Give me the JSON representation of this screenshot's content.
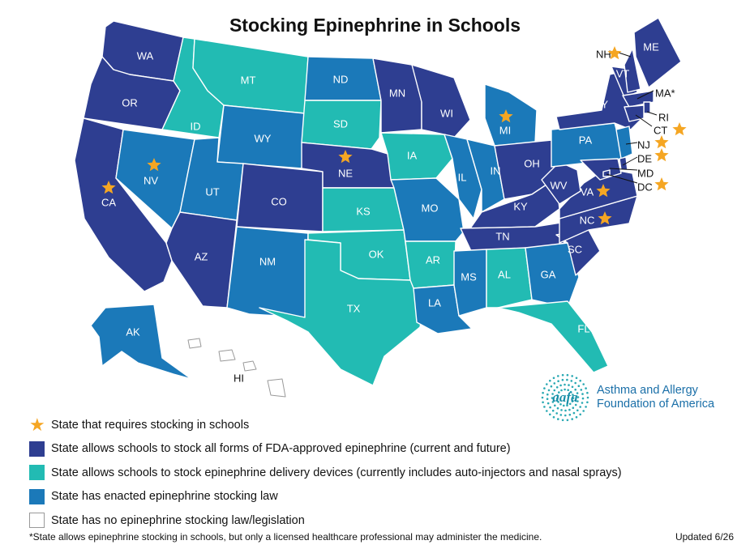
{
  "title": "Stocking Epinephrine in Schools",
  "colors": {
    "dark": "#2e3e91",
    "teal": "#22bbb3",
    "blue": "#1b79b9",
    "none": "#ffffff",
    "star": "#f5a623"
  },
  "categories": {
    "dark": "State allows schools to stock all forms of FDA-approved epinephrine (current and future)",
    "teal": "State allows schools to stock epinephrine delivery devices (currently includes auto-injectors and nasal sprays)",
    "blue": "State has enacted epinephrine stocking law",
    "none": "State has no epinephrine stocking law/legislation"
  },
  "legend": {
    "star": "State that requires stocking in schools",
    "dark": "State allows schools to stock all forms of FDA-approved epinephrine (current and future)",
    "teal": "State allows schools to stock epinephrine delivery devices (currently includes auto-injectors and nasal sprays)",
    "blue": "State has enacted epinephrine stocking law",
    "none": "State has no epinephrine stocking law/legislation"
  },
  "states": {
    "WA": {
      "category": "dark",
      "requires": false
    },
    "OR": {
      "category": "dark",
      "requires": false
    },
    "CA": {
      "category": "dark",
      "requires": true
    },
    "ID": {
      "category": "teal",
      "requires": false
    },
    "MT": {
      "category": "teal",
      "requires": false
    },
    "WY": {
      "category": "blue",
      "requires": false
    },
    "NV": {
      "category": "blue",
      "requires": true
    },
    "UT": {
      "category": "blue",
      "requires": false
    },
    "AZ": {
      "category": "dark",
      "requires": false
    },
    "CO": {
      "category": "dark",
      "requires": false
    },
    "NM": {
      "category": "blue",
      "requires": false
    },
    "ND": {
      "category": "blue",
      "requires": false
    },
    "SD": {
      "category": "teal",
      "requires": false
    },
    "NE": {
      "category": "dark",
      "requires": true
    },
    "KS": {
      "category": "teal",
      "requires": false
    },
    "OK": {
      "category": "teal",
      "requires": false
    },
    "TX": {
      "category": "teal",
      "requires": false
    },
    "MN": {
      "category": "dark",
      "requires": false
    },
    "IA": {
      "category": "teal",
      "requires": false
    },
    "MO": {
      "category": "blue",
      "requires": false
    },
    "AR": {
      "category": "teal",
      "requires": false
    },
    "LA": {
      "category": "blue",
      "requires": false
    },
    "WI": {
      "category": "dark",
      "requires": false
    },
    "IL": {
      "category": "blue",
      "requires": false
    },
    "MI": {
      "category": "blue",
      "requires": true
    },
    "IN": {
      "category": "blue",
      "requires": false
    },
    "OH": {
      "category": "dark",
      "requires": false
    },
    "KY": {
      "category": "dark",
      "requires": false
    },
    "TN": {
      "category": "dark",
      "requires": false
    },
    "MS": {
      "category": "blue",
      "requires": false
    },
    "AL": {
      "category": "teal",
      "requires": false
    },
    "GA": {
      "category": "blue",
      "requires": false
    },
    "FL": {
      "category": "teal",
      "requires": false
    },
    "SC": {
      "category": "dark",
      "requires": false
    },
    "NC": {
      "category": "dark",
      "requires": true
    },
    "VA": {
      "category": "dark",
      "requires": true
    },
    "WV": {
      "category": "dark",
      "requires": false
    },
    "PA": {
      "category": "blue",
      "requires": false
    },
    "NY": {
      "category": "dark",
      "requires": false
    },
    "VT": {
      "category": "dark",
      "requires": false
    },
    "NH": {
      "category": "dark",
      "requires": true
    },
    "ME": {
      "category": "dark",
      "requires": false
    },
    "MA": {
      "category": "dark",
      "requires": false
    },
    "RI": {
      "category": "dark",
      "requires": false
    },
    "CT": {
      "category": "dark",
      "requires": true
    },
    "NJ": {
      "category": "blue",
      "requires": true
    },
    "DE": {
      "category": "dark",
      "requires": true
    },
    "MD": {
      "category": "dark",
      "requires": false
    },
    "DC": {
      "category": "dark",
      "requires": true
    },
    "AK": {
      "category": "blue",
      "requires": false
    },
    "HI": {
      "category": "none",
      "requires": false
    }
  },
  "callout_labels": {
    "NH": "NH",
    "MA": "MA*",
    "RI": "RI",
    "CT": "CT",
    "NJ": "NJ",
    "DE": "DE",
    "MD": "MD",
    "DC": "DC",
    "HI": "HI"
  },
  "logo": {
    "mark": "aafa",
    "line1": "Asthma and Allergy",
    "line2": "Foundation of America"
  },
  "footnote": "*State allows epinephrine stocking in schools, but only a licensed healthcare professional may administer the medicine.",
  "updated": "Updated 6/26"
}
